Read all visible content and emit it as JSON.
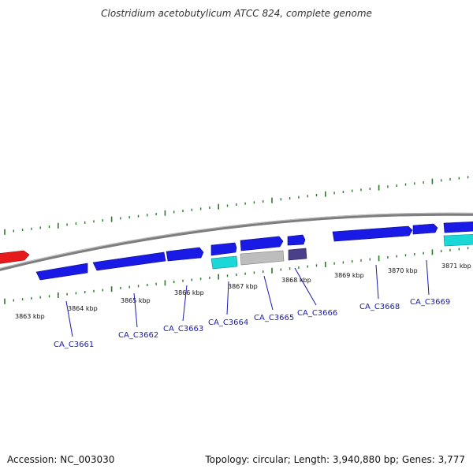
{
  "title": "Clostridium acetobutylicum ATCC 824, complete genome",
  "footer": {
    "accession": "Accession: NC_003030",
    "info": "Topology: circular; Length: 3,940,880 bp; Genes: 3,777"
  },
  "colors": {
    "backbone": "#8a8a8a",
    "ticks": "#2a7a2a",
    "label_text": "#1a1ab0",
    "cds": "#1a1ae6",
    "rna_red": "#e61a1a",
    "cyan": "#1ad8d8",
    "gray": "#bdbdbd",
    "dark": "#4a3f8a"
  },
  "kbp_labels": [
    "3863 kbp",
    "3864 kbp",
    "3865 kbp",
    "3866 kbp",
    "3867 kbp",
    "3868 kbp",
    "3869 kbp",
    "3870 kbp",
    "3871 kbp"
  ],
  "loci": [
    "CA_C3661",
    "CA_C3662",
    "CA_C3663",
    "CA_C3664",
    "CA_C3665",
    "CA_C3666",
    "CA_C3668",
    "CA_C3669"
  ]
}
